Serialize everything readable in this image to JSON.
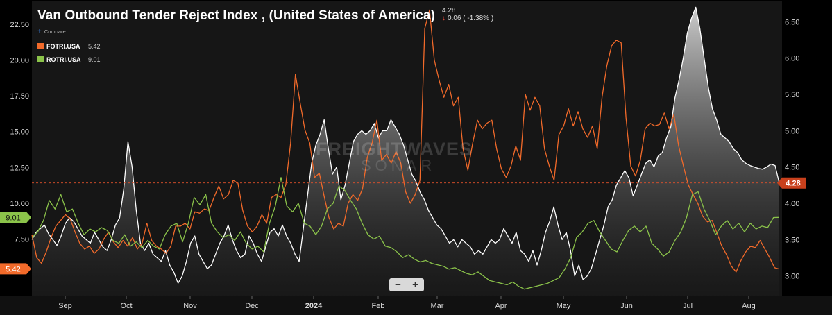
{
  "header": {
    "title": "Van Outbound  Tender Reject Index , (United States of America)",
    "last_value": "4.28",
    "change": "0.06 ( -1.38% )",
    "compare_label": "Compare..."
  },
  "legend": [
    {
      "name": "FOTRI.USA",
      "value": "5.42",
      "color": "#f26a2a"
    },
    {
      "name": "ROTRI.USA",
      "value": "9.01",
      "color": "#8bc34a"
    }
  ],
  "watermark": {
    "line1": "FREIGHTWAVES",
    "line2": "SONAR"
  },
  "zoom": {
    "minus": "−",
    "plus": "+"
  },
  "chart_data": {
    "type": "line",
    "x_labels": [
      "Sep",
      "Oct",
      "Nov",
      "Dec",
      "2024",
      "Feb",
      "Mar",
      "Apr",
      "May",
      "Jun",
      "Jul",
      "Aug"
    ],
    "left_axis": {
      "ticks": [
        "7.50",
        "10.00",
        "12.50",
        "15.00",
        "17.50",
        "20.00",
        "22.50"
      ],
      "ylim": [
        3.5,
        24.1
      ]
    },
    "right_axis": {
      "ticks": [
        "3.00",
        "3.50",
        "4.00",
        "4.50",
        "5.00",
        "5.50",
        "6.00",
        "6.50"
      ],
      "ylim": [
        2.72,
        6.78
      ]
    },
    "last_labels": {
      "left_orange": "5.42",
      "left_green": "9.01",
      "right_white": "4.28"
    },
    "reference_line": 4.28,
    "series": [
      {
        "name": "Van Outbound Tender Reject Index",
        "axis": "right",
        "color": "#ffffff",
        "fill": true,
        "values": [
          3.5,
          3.6,
          3.65,
          3.7,
          3.58,
          3.5,
          3.42,
          3.55,
          3.72,
          3.8,
          3.75,
          3.65,
          3.55,
          3.5,
          3.45,
          3.6,
          3.5,
          3.4,
          3.35,
          3.5,
          3.7,
          3.8,
          4.2,
          4.85,
          4.5,
          3.9,
          3.45,
          3.35,
          3.45,
          3.3,
          3.25,
          3.2,
          3.35,
          3.15,
          3.05,
          2.9,
          3.0,
          3.2,
          3.45,
          3.55,
          3.3,
          3.2,
          3.1,
          3.15,
          3.3,
          3.45,
          3.55,
          3.7,
          3.5,
          3.35,
          3.25,
          3.3,
          3.55,
          3.45,
          3.3,
          3.2,
          3.4,
          3.6,
          3.65,
          3.55,
          3.7,
          3.55,
          3.45,
          3.3,
          3.2,
          3.65,
          4.1,
          4.55,
          4.8,
          4.95,
          5.15,
          4.75,
          4.4,
          4.5,
          4.05,
          4.25,
          4.55,
          4.85,
          4.95,
          5.0,
          4.95,
          5.0,
          5.1,
          4.9,
          5.0,
          5.0,
          5.15,
          5.05,
          4.95,
          4.8,
          4.6,
          4.4,
          4.3,
          4.15,
          4.05,
          3.9,
          3.8,
          3.7,
          3.65,
          3.55,
          3.45,
          3.5,
          3.4,
          3.5,
          3.45,
          3.4,
          3.3,
          3.35,
          3.3,
          3.4,
          3.5,
          3.45,
          3.5,
          3.65,
          3.55,
          3.45,
          3.6,
          3.35,
          3.3,
          3.2,
          3.35,
          3.15,
          3.35,
          3.6,
          3.75,
          3.95,
          3.7,
          3.5,
          3.6,
          3.35,
          3.0,
          3.15,
          2.95,
          3.0,
          3.1,
          3.3,
          3.5,
          3.7,
          3.95,
          4.05,
          4.25,
          4.35,
          4.45,
          4.35,
          4.1,
          4.25,
          4.4,
          4.55,
          4.6,
          4.5,
          4.65,
          4.7,
          4.9,
          5.05,
          5.45,
          5.7,
          6.0,
          6.35,
          6.55,
          6.7,
          6.4,
          6.0,
          5.6,
          5.3,
          5.15,
          4.95,
          4.9,
          4.85,
          4.75,
          4.7,
          4.6,
          4.55,
          4.52,
          4.5,
          4.48,
          4.47,
          4.5,
          4.54,
          4.52,
          4.28
        ]
      },
      {
        "name": "FOTRI.USA",
        "axis": "left",
        "color": "#f26a2a",
        "values": [
          7.8,
          6.2,
          5.8,
          6.6,
          7.6,
          8.4,
          8.8,
          9.2,
          8.9,
          8.0,
          7.2,
          6.8,
          7.0,
          6.5,
          6.8,
          7.5,
          8.0,
          7.3,
          6.9,
          7.4,
          7.0,
          7.6,
          6.8,
          7.2,
          8.6,
          7.4,
          7.0,
          6.8,
          6.5,
          7.0,
          8.4,
          8.4,
          8.6,
          8.2,
          9.4,
          9.3,
          9.6,
          9.5,
          10.4,
          11.2,
          10.3,
          10.6,
          11.6,
          11.4,
          9.5,
          8.4,
          8.0,
          8.4,
          9.2,
          8.6,
          10.4,
          10.6,
          10.4,
          11.3,
          14.2,
          19.0,
          17.0,
          15.1,
          14.2,
          11.8,
          12.1,
          10.5,
          9.0,
          8.2,
          8.6,
          8.4,
          10.0,
          10.6,
          10.2,
          11.0,
          13.2,
          14.2,
          15.8,
          13.0,
          13.4,
          12.8,
          13.6,
          12.8,
          10.8,
          10.0,
          10.6,
          11.6,
          22.2,
          23.5,
          20.0,
          18.6,
          17.4,
          18.3,
          16.8,
          17.4,
          13.8,
          12.3,
          14.2,
          15.8,
          15.2,
          15.6,
          15.8,
          13.8,
          12.4,
          11.8,
          12.6,
          14.0,
          13.0,
          17.6,
          16.5,
          17.4,
          16.8,
          13.8,
          12.6,
          11.6,
          14.8,
          15.4,
          16.6,
          15.4,
          16.4,
          15.2,
          14.6,
          15.4,
          13.8,
          17.4,
          19.6,
          21.0,
          21.4,
          21.2,
          16.0,
          12.6,
          11.9,
          13.0,
          15.2,
          15.6,
          15.4,
          15.5,
          16.3,
          15.2,
          16.2,
          14.0,
          12.6,
          11.3,
          10.6,
          10.0,
          9.1,
          8.7,
          8.8,
          7.9,
          7.0,
          6.4,
          5.6,
          5.2,
          6.0,
          6.6,
          7.0,
          6.9,
          7.4,
          6.8,
          6.2,
          5.5,
          5.4
        ]
      },
      {
        "name": "ROTRI.USA",
        "axis": "left",
        "color": "#8bc34a",
        "values": [
          7.6,
          8.0,
          8.8,
          10.2,
          9.6,
          10.6,
          9.4,
          9.6,
          8.6,
          7.8,
          8.2,
          8.0,
          8.3,
          8.1,
          7.4,
          7.2,
          7.8,
          7.0,
          7.3,
          6.9,
          7.4,
          7.0,
          6.8,
          7.8,
          8.4,
          8.6,
          7.3,
          8.6,
          10.4,
          9.9,
          10.6,
          8.6,
          8.0,
          7.6,
          7.8,
          7.4,
          8.0,
          7.2,
          6.8,
          7.0,
          6.6,
          8.6,
          9.8,
          11.8,
          9.8,
          9.4,
          10.0,
          8.6,
          8.4,
          7.8,
          8.4,
          9.6,
          10.0,
          11.2,
          10.9,
          10.2,
          9.6,
          8.6,
          7.8,
          7.5,
          7.7,
          7.0,
          6.9,
          6.6,
          6.2,
          6.4,
          6.1,
          5.9,
          6.0,
          5.8,
          5.7,
          5.6,
          5.4,
          5.5,
          5.3,
          5.1,
          5.0,
          5.2,
          4.9,
          4.6,
          4.5,
          4.4,
          4.3,
          4.5,
          4.2,
          4.0,
          4.1,
          4.2,
          4.3,
          4.4,
          4.6,
          4.8,
          5.4,
          6.2,
          7.6,
          8.0,
          8.6,
          8.8,
          8.0,
          7.4,
          6.8,
          6.6,
          7.4,
          8.1,
          8.4,
          8.0,
          8.4,
          7.2,
          6.8,
          6.3,
          6.6,
          7.4,
          8.0,
          9.0,
          10.6,
          10.8,
          9.6,
          8.8,
          7.8,
          8.4,
          8.8,
          8.2,
          8.6,
          8.0,
          8.6,
          8.2,
          8.4,
          8.3,
          9.0,
          9.01
        ]
      }
    ]
  }
}
